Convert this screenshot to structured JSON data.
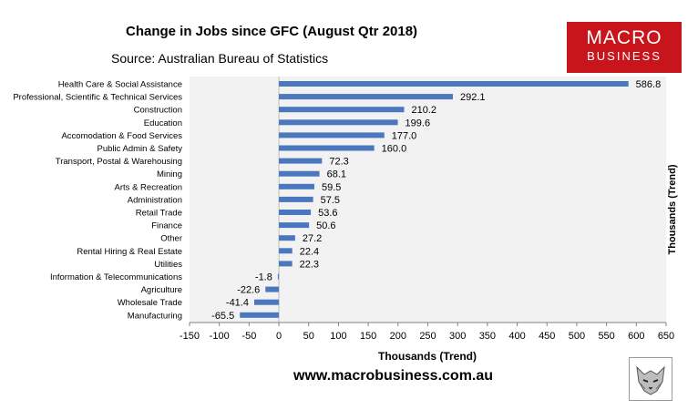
{
  "header": {
    "title": "Change in Jobs since GFC (August Qtr 2018)",
    "source": "Source: Australian Bureau of Statistics",
    "logo_line1": "MACRO",
    "logo_line2": "BUSINESS"
  },
  "footer": {
    "website": "www.macrobusiness.com.au"
  },
  "colors": {
    "bar": "#4a77bd",
    "logo_bg": "#c8141b"
  },
  "chart_data": {
    "type": "bar",
    "orientation": "horizontal",
    "categories": [
      "Health Care & Social Assistance",
      "Professional, Scientific & Technical Services",
      "Construction",
      "Education",
      "Accomodation & Food Services",
      "Public Admin & Safety",
      "Transport, Postal & Warehousing",
      "Mining",
      "Arts & Recreation",
      "Administration",
      "Retail Trade",
      "Finance",
      "Other",
      "Rental Hiring & Real Estate",
      "Utilities",
      "Information & Telecommunications",
      "Agriculture",
      "Wholesale Trade",
      "Manufacturing"
    ],
    "values": [
      586.8,
      292.1,
      210.2,
      199.6,
      177.0,
      160.0,
      72.3,
      68.1,
      59.5,
      57.5,
      53.6,
      50.6,
      27.2,
      22.4,
      22.3,
      -1.8,
      -22.6,
      -41.4,
      -65.5
    ],
    "value_labels": [
      "586.8",
      "292.1",
      "210.2",
      "199.6",
      "177.0",
      "160.0",
      "72.3",
      "68.1",
      "59.5",
      "57.5",
      "53.6",
      "50.6",
      "27.2",
      "22.4",
      "22.3",
      "-1.8",
      "-22.6",
      "-41.4",
      "-65.5"
    ],
    "xlim": [
      -150,
      650
    ],
    "xticks": [
      -150,
      -100,
      -50,
      0,
      50,
      100,
      150,
      200,
      250,
      300,
      350,
      400,
      450,
      500,
      550,
      600,
      650
    ],
    "xlabel": "Thousands (Trend)",
    "ylabel_right": "Thousands (Trend)",
    "grid": false,
    "plot_background": "#f2f2f2"
  }
}
